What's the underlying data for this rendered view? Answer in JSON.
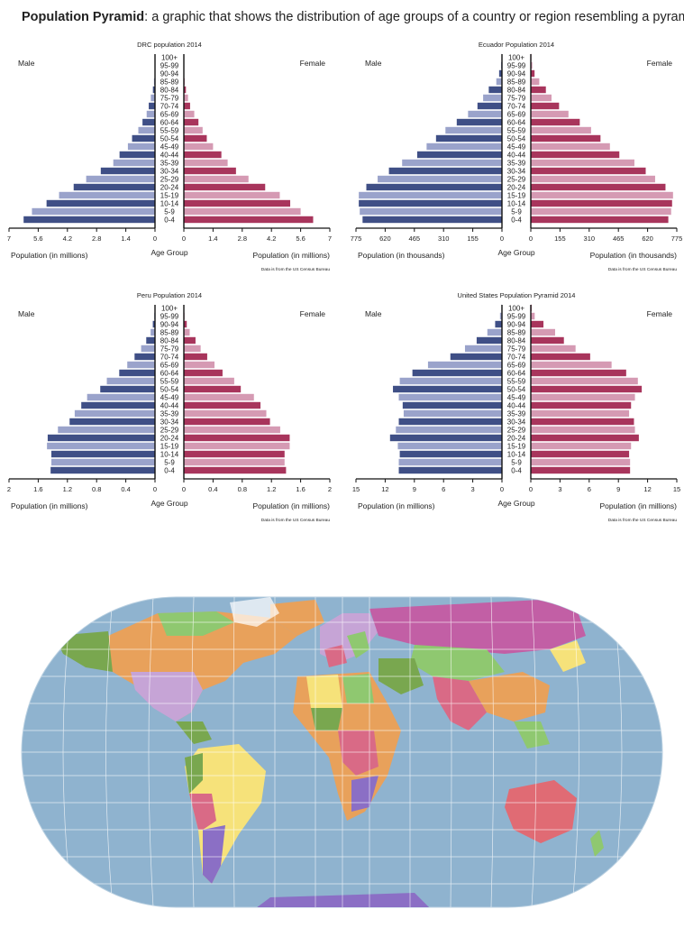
{
  "heading": {
    "bold": "Population Pyramid",
    "rest": ": a graphic that shows the distribution of age groups of a country or region resembling a pyramid."
  },
  "colors": {
    "male": "#3f4f86",
    "male_alt": "#9aa3cb",
    "female": "#a8355c",
    "female_alt": "#d59ab3"
  },
  "chart_data": [
    {
      "type": "bar",
      "title": "DRC population 2014",
      "male_label": "Male",
      "female_label": "Female",
      "center_label": "Age Group",
      "xlabel_left": "Population (in millions)",
      "xlabel_right": "Population (in millions)",
      "source": "Data is from the US Census Bureau",
      "categories": [
        "0-4",
        "5-9",
        "10-14",
        "15-19",
        "20-24",
        "25-29",
        "30-34",
        "35-39",
        "40-44",
        "45-49",
        "50-54",
        "55-59",
        "60-64",
        "65-69",
        "70-74",
        "75-79",
        "80-84",
        "85-89",
        "90-94",
        "95-99",
        "100+"
      ],
      "ticks": [
        "7",
        "5.6",
        "4.2",
        "2.8",
        "1.4",
        "0"
      ],
      "xlim": [
        0,
        7
      ],
      "series": [
        {
          "name": "Male",
          "values": [
            6.3,
            5.9,
            5.2,
            4.6,
            3.9,
            3.3,
            2.6,
            2.0,
            1.7,
            1.3,
            1.1,
            0.8,
            0.6,
            0.4,
            0.3,
            0.2,
            0.1,
            0.05,
            0.02,
            0.01,
            0.0
          ]
        },
        {
          "name": "Female",
          "values": [
            6.2,
            5.6,
            5.1,
            4.6,
            3.9,
            3.1,
            2.5,
            2.1,
            1.8,
            1.4,
            1.1,
            0.9,
            0.7,
            0.5,
            0.3,
            0.2,
            0.1,
            0.05,
            0.02,
            0.01,
            0.0
          ]
        }
      ]
    },
    {
      "type": "bar",
      "title": "Ecuador Population 2014",
      "male_label": "Male",
      "female_label": "Female",
      "center_label": "Age Group",
      "xlabel_left": "Population (in thousands)",
      "xlabel_right": "Population (in thousands)",
      "source": "Data is from the US Census Bureau",
      "categories": [
        "0-4",
        "5-9",
        "10-14",
        "15-19",
        "20-24",
        "25-29",
        "30-34",
        "35-39",
        "40-44",
        "45-49",
        "50-54",
        "55-59",
        "60-64",
        "65-69",
        "70-74",
        "75-79",
        "80-84",
        "85-89",
        "90-94",
        "95-99",
        "100+"
      ],
      "ticks": [
        "775",
        "620",
        "465",
        "310",
        "155",
        "0"
      ],
      "xlim": [
        0,
        775
      ],
      "series": [
        {
          "name": "Male",
          "values": [
            740,
            755,
            760,
            760,
            720,
            660,
            600,
            530,
            450,
            400,
            350,
            300,
            240,
            180,
            130,
            100,
            70,
            30,
            15,
            5,
            2
          ]
        },
        {
          "name": "Female",
          "values": [
            730,
            745,
            750,
            755,
            715,
            660,
            610,
            550,
            470,
            420,
            370,
            320,
            260,
            200,
            150,
            110,
            80,
            45,
            20,
            8,
            3
          ]
        }
      ]
    },
    {
      "type": "bar",
      "title": "Peru Population 2014",
      "male_label": "Male",
      "female_label": "Female",
      "center_label": "Age Group",
      "xlabel_left": "Population (in millions)",
      "xlabel_right": "Population (in millions)",
      "source": "Data is from the US Census Bureau",
      "categories": [
        "0-4",
        "5-9",
        "10-14",
        "15-19",
        "20-24",
        "25-29",
        "30-34",
        "35-39",
        "40-44",
        "45-49",
        "50-54",
        "55-59",
        "60-64",
        "65-69",
        "70-74",
        "75-79",
        "80-84",
        "85-89",
        "90-94",
        "95-99",
        "100+"
      ],
      "ticks": [
        "2",
        "1.6",
        "1.2",
        "0.8",
        "0.4",
        "0"
      ],
      "xlim": [
        0,
        2
      ],
      "series": [
        {
          "name": "Male",
          "values": [
            1.43,
            1.42,
            1.42,
            1.48,
            1.47,
            1.33,
            1.17,
            1.1,
            1.01,
            0.93,
            0.75,
            0.66,
            0.49,
            0.38,
            0.28,
            0.19,
            0.12,
            0.06,
            0.03,
            0.01,
            0.0
          ]
        },
        {
          "name": "Female",
          "values": [
            1.4,
            1.38,
            1.38,
            1.45,
            1.45,
            1.32,
            1.18,
            1.13,
            1.05,
            0.96,
            0.78,
            0.69,
            0.53,
            0.42,
            0.32,
            0.23,
            0.16,
            0.08,
            0.04,
            0.01,
            0.0
          ]
        }
      ]
    },
    {
      "type": "bar",
      "title": "United States Population Pyramid 2014",
      "male_label": "Male",
      "female_label": "Female",
      "center_label": "Age Group",
      "xlabel_left": "Population (in millions)",
      "xlabel_right": "Population (in millions)",
      "source": "Data is from the US Census Bureau",
      "categories": [
        "0-4",
        "5-9",
        "10-14",
        "15-19",
        "20-24",
        "25-29",
        "30-34",
        "35-39",
        "40-44",
        "45-49",
        "50-54",
        "55-59",
        "60-64",
        "65-69",
        "70-74",
        "75-79",
        "80-84",
        "85-89",
        "90-94",
        "95-99",
        "100+"
      ],
      "ticks": [
        "15",
        "12",
        "9",
        "6",
        "3",
        "0"
      ],
      "xlim": [
        0,
        15
      ],
      "series": [
        {
          "name": "Male",
          "values": [
            10.6,
            10.6,
            10.5,
            10.7,
            11.5,
            10.9,
            10.6,
            10.1,
            10.2,
            10.6,
            11.2,
            10.5,
            9.2,
            7.6,
            5.3,
            3.8,
            2.6,
            1.5,
            0.7,
            0.2,
            0.05
          ]
        },
        {
          "name": "Female",
          "values": [
            10.2,
            10.2,
            10.1,
            10.3,
            11.1,
            10.7,
            10.6,
            10.1,
            10.3,
            10.7,
            11.4,
            11.0,
            9.8,
            8.3,
            6.1,
            4.6,
            3.4,
            2.5,
            1.3,
            0.4,
            0.08
          ]
        }
      ]
    }
  ]
}
